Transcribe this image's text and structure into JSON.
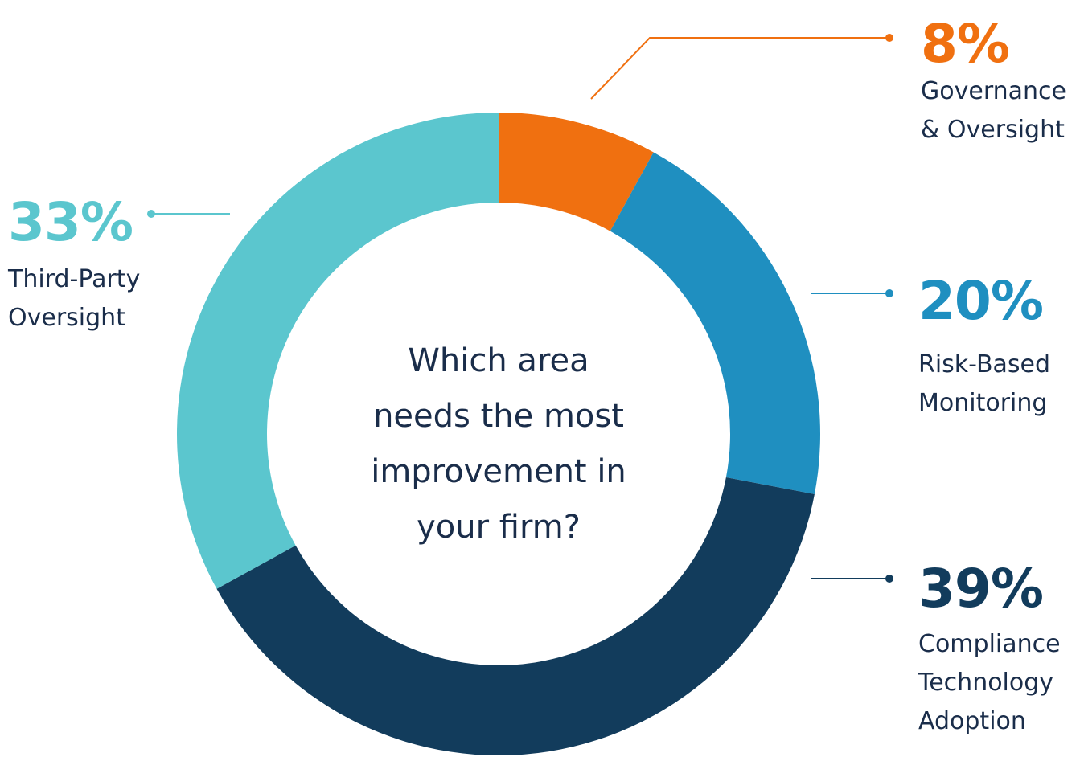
{
  "chart_data": {
    "type": "pie",
    "title": "Which area needs the most improvement in your firm?",
    "title_lines": [
      "Which area",
      "needs the most",
      "improvement in",
      "your firm?"
    ],
    "slices": [
      {
        "label": "Governance & Oversight",
        "label_lines": [
          "Governance",
          "& Oversight"
        ],
        "value": 8,
        "display": "8%",
        "color": "#f07010"
      },
      {
        "label": "Risk-Based Monitoring",
        "label_lines": [
          "Risk-Based",
          "Monitoring"
        ],
        "value": 20,
        "display": "20%",
        "color": "#1f8fc0"
      },
      {
        "label": "Compliance Technology Adoption",
        "label_lines": [
          "Compliance",
          "Technology",
          "Adoption"
        ],
        "value": 39,
        "display": "39%",
        "color": "#123c5c"
      },
      {
        "label": "Third-Party Oversight",
        "label_lines": [
          "Third-Party",
          "Oversight"
        ],
        "value": 33,
        "display": "33%",
        "color": "#5bc6ce"
      }
    ],
    "donut": true,
    "legend": "none"
  }
}
